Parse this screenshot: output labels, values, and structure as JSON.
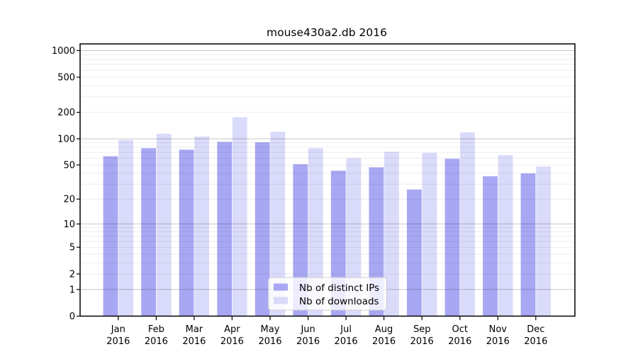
{
  "figure": {
    "background": "#ffffff",
    "frame_color": "#000000"
  },
  "chart_data": {
    "type": "bar",
    "title": "mouse430a2.db 2016",
    "categories": [
      "Jan",
      "Feb",
      "Mar",
      "Apr",
      "May",
      "Jun",
      "Jul",
      "Aug",
      "Sep",
      "Oct",
      "Nov",
      "Dec"
    ],
    "year": "2016",
    "series": [
      {
        "name": "Nb of distinct IPs",
        "color": "#a7a7f3",
        "values": [
          63,
          78,
          75,
          92,
          91,
          51,
          43,
          47,
          26,
          59,
          37,
          40
        ]
      },
      {
        "name": "Nb of downloads",
        "color": "#dadafa",
        "values": [
          97,
          114,
          106,
          176,
          120,
          78,
          60,
          71,
          69,
          118,
          65,
          48
        ]
      }
    ],
    "xlabel": "",
    "ylabel": "",
    "yscale": "log10(value+1)",
    "ylim": [
      0,
      1190
    ],
    "y_tick_labels": [
      "1000",
      "500",
      "200",
      "100",
      "50",
      "20",
      "10",
      "5",
      "2",
      "1",
      "0"
    ],
    "y_major_gridlines": [
      1,
      10,
      100,
      1000
    ],
    "y_minor_gridlines": [
      2,
      3,
      4,
      5,
      6,
      7,
      8,
      9,
      20,
      30,
      40,
      50,
      60,
      70,
      80,
      90,
      200,
      300,
      400,
      500,
      600,
      700,
      800,
      900
    ],
    "grid": true,
    "grid_major_color": "rgba(0,0,0,0.22)",
    "grid_minor_color": "rgba(0,0,0,0.07)",
    "legend_position": "bottom-center-right",
    "legend": {
      "items": [
        "Nb of distinct IPs",
        "Nb of downloads"
      ],
      "background": "rgba(255,255,255,0.8)",
      "border_color": "#cccccc"
    }
  }
}
